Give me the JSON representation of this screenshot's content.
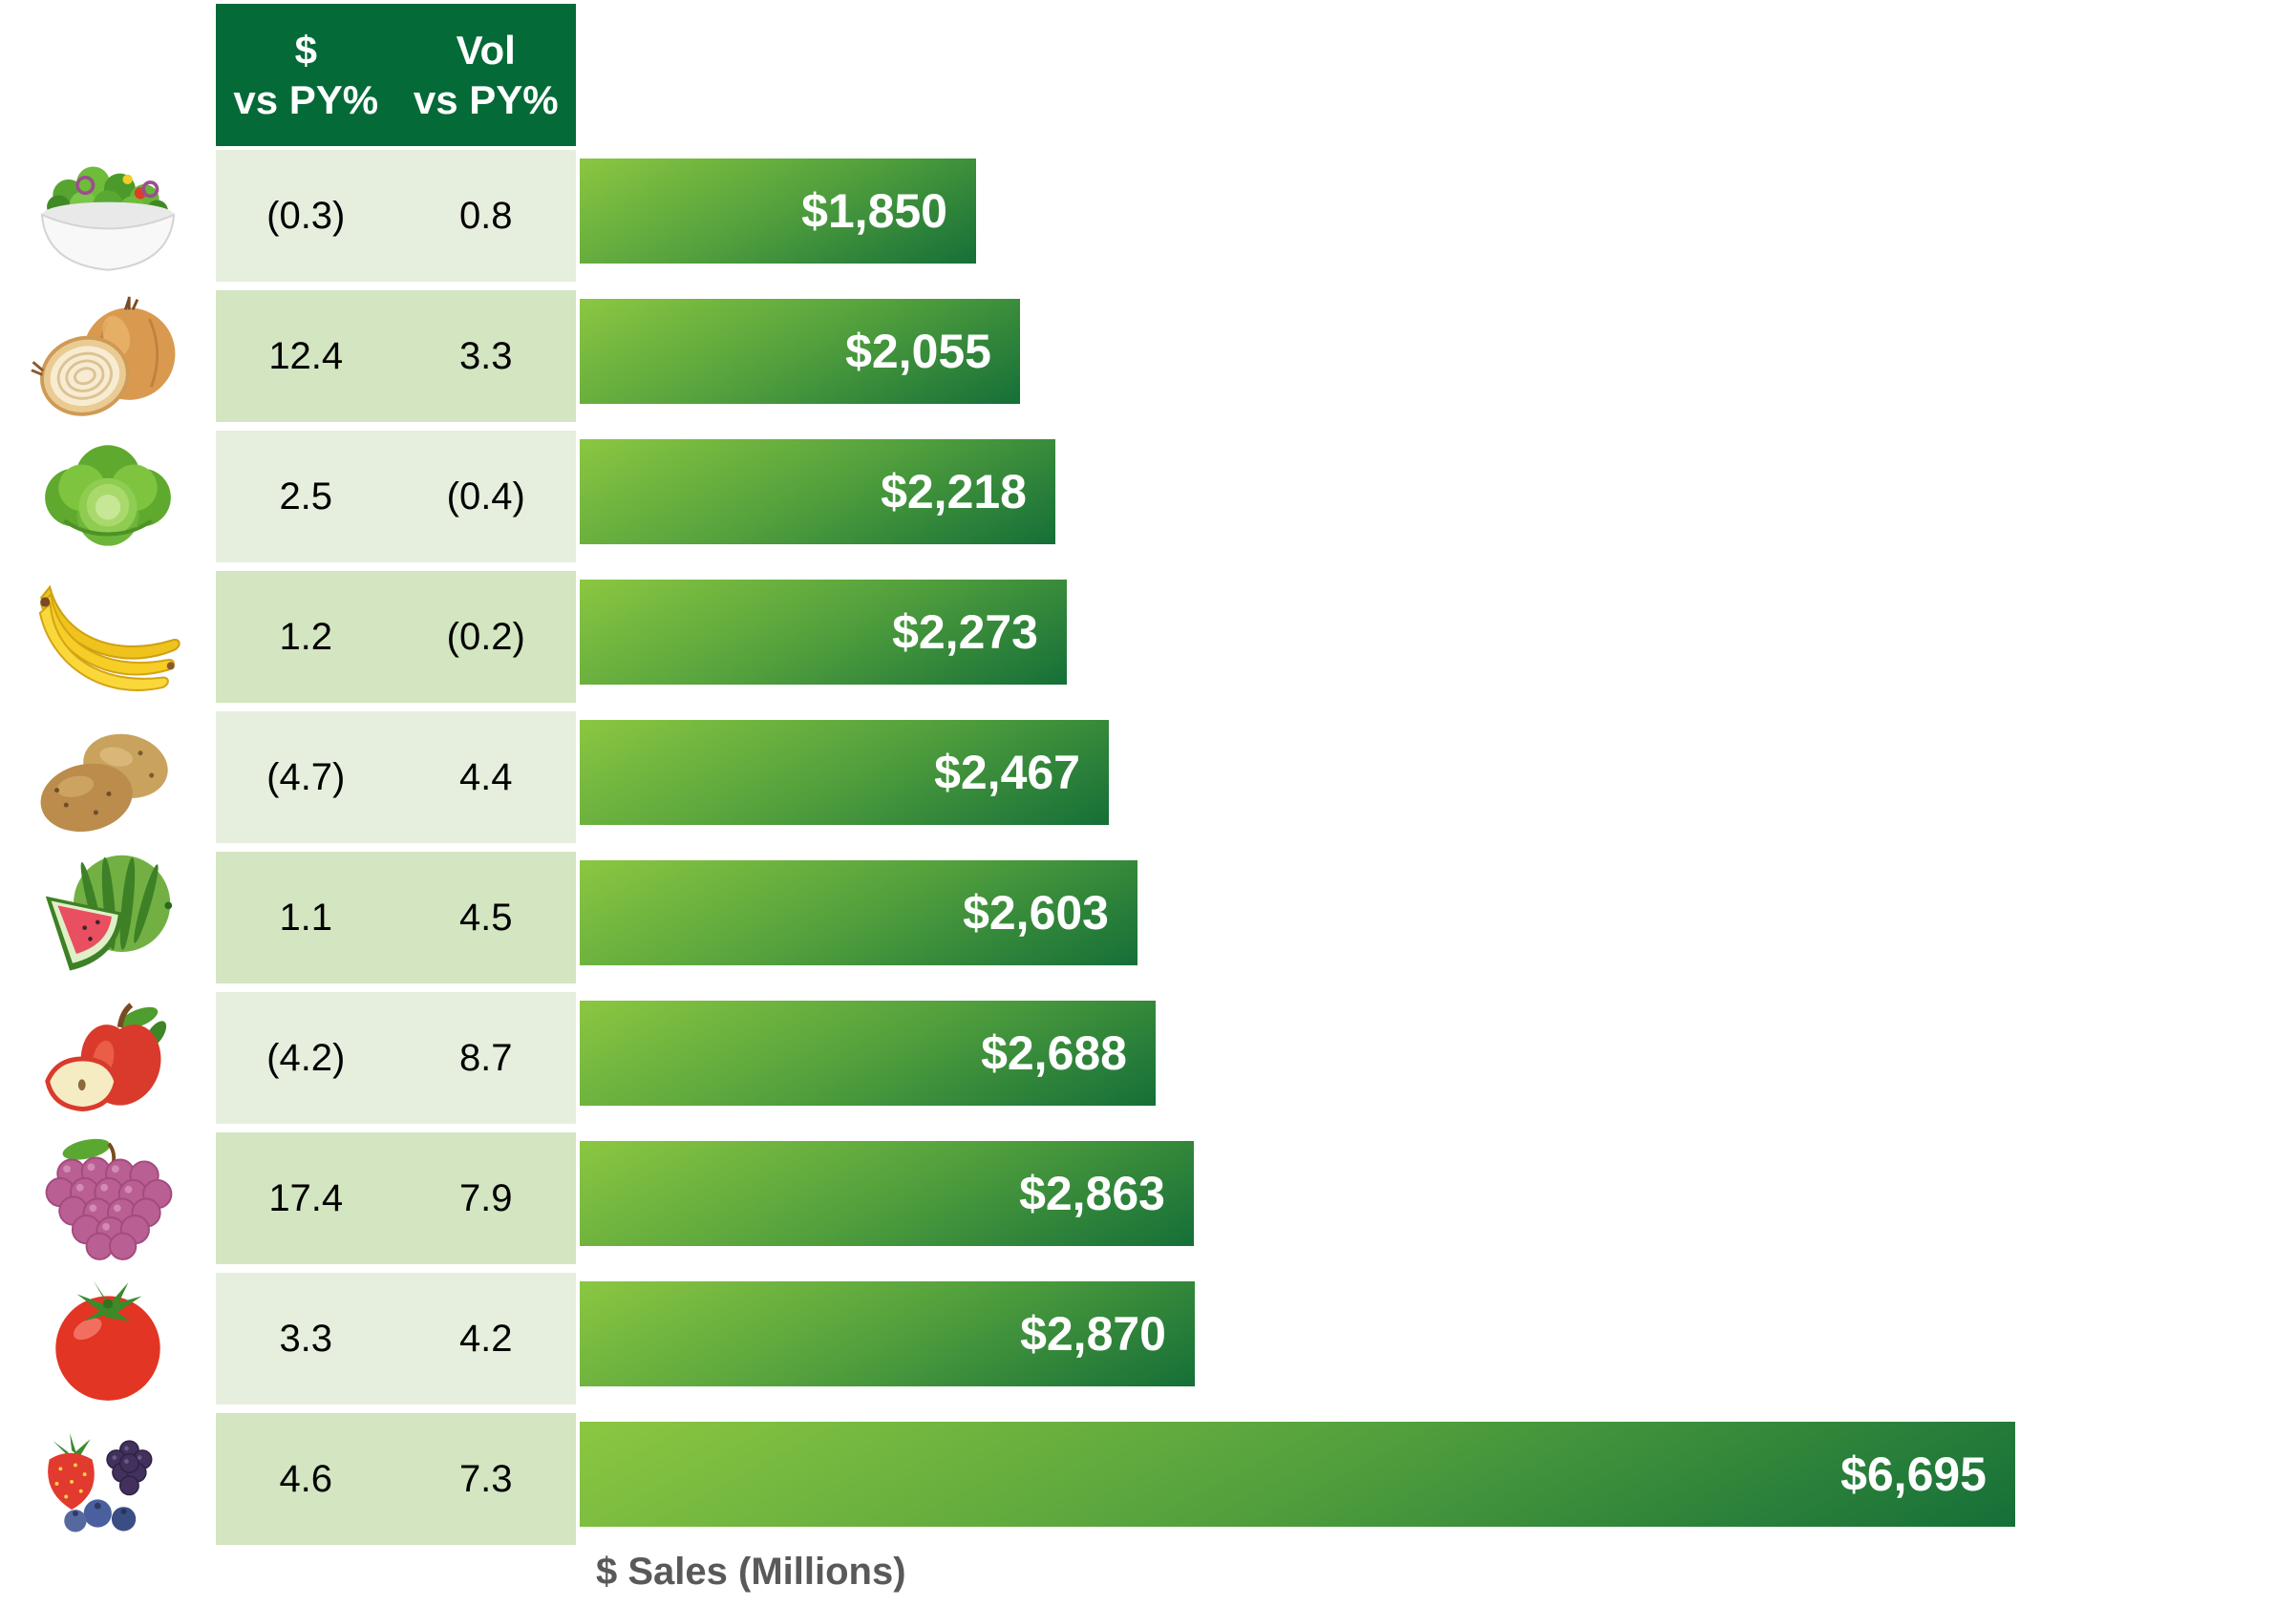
{
  "header": {
    "col1_line1": "$",
    "col1_line2": "vs PY%",
    "col2_line1": "Vol",
    "col2_line2": "vs PY%"
  },
  "axis_label": "$ Sales (Millions)",
  "colors": {
    "header_green": "#046a38",
    "row_light": "#e6efdd",
    "row_dark": "#d3e5c1",
    "bar_gradient_top": "#8bc741",
    "bar_gradient_mid": "#55a23d",
    "bar_gradient_bottom": "#156f38",
    "bar_label_color": "#ffffff",
    "value_text_color": "#000000",
    "axis_label_color": "#595959"
  },
  "rows": [
    {
      "icon": "salad-icon",
      "item": "salad",
      "dollar_vs_py": "(0.3)",
      "vol_vs_py": "0.8",
      "sales_label": "$1,850",
      "sales_value": 1850
    },
    {
      "icon": "onion-icon",
      "item": "onions",
      "dollar_vs_py": "12.4",
      "vol_vs_py": "3.3",
      "sales_label": "$2,055",
      "sales_value": 2055
    },
    {
      "icon": "lettuce-icon",
      "item": "lettuce",
      "dollar_vs_py": "2.5",
      "vol_vs_py": "(0.4)",
      "sales_label": "$2,218",
      "sales_value": 2218
    },
    {
      "icon": "bananas-icon",
      "item": "bananas",
      "dollar_vs_py": "1.2",
      "vol_vs_py": "(0.2)",
      "sales_label": "$2,273",
      "sales_value": 2273
    },
    {
      "icon": "potatoes-icon",
      "item": "potatoes",
      "dollar_vs_py": "(4.7)",
      "vol_vs_py": "4.4",
      "sales_label": "$2,467",
      "sales_value": 2467
    },
    {
      "icon": "watermelon-icon",
      "item": "watermelon",
      "dollar_vs_py": "1.1",
      "vol_vs_py": "4.5",
      "sales_label": "$2,603",
      "sales_value": 2603
    },
    {
      "icon": "apple-icon",
      "item": "apples",
      "dollar_vs_py": "(4.2)",
      "vol_vs_py": "8.7",
      "sales_label": "$2,688",
      "sales_value": 2688
    },
    {
      "icon": "grapes-icon",
      "item": "grapes",
      "dollar_vs_py": "17.4",
      "vol_vs_py": "7.9",
      "sales_label": "$2,863",
      "sales_value": 2863
    },
    {
      "icon": "tomato-icon",
      "item": "tomatoes",
      "dollar_vs_py": "3.3",
      "vol_vs_py": "4.2",
      "sales_label": "$2,870",
      "sales_value": 2870
    },
    {
      "icon": "berries-icon",
      "item": "berries",
      "dollar_vs_py": "4.6",
      "vol_vs_py": "7.3",
      "sales_label": "$6,695",
      "sales_value": 6695
    }
  ],
  "chart_data": {
    "type": "bar",
    "orientation": "horizontal",
    "title": "",
    "xlabel": "$ Sales (Millions)",
    "ylabel": "",
    "xlim": [
      0,
      6695
    ],
    "grid": false,
    "legend": false,
    "categories": [
      "salad",
      "onions",
      "lettuce",
      "bananas",
      "potatoes",
      "watermelon",
      "apples",
      "grapes",
      "tomatoes",
      "berries"
    ],
    "series": [
      {
        "name": "$ Sales (Millions)",
        "values": [
          1850,
          2055,
          2218,
          2273,
          2467,
          2603,
          2688,
          2863,
          2870,
          6695
        ]
      },
      {
        "name": "$ vs PY%",
        "values": [
          -0.3,
          12.4,
          2.5,
          1.2,
          -4.7,
          1.1,
          -4.2,
          17.4,
          3.3,
          4.6
        ]
      },
      {
        "name": "Vol vs PY%",
        "values": [
          0.8,
          3.3,
          -0.4,
          -0.2,
          4.4,
          4.5,
          8.7,
          7.9,
          4.2,
          7.3
        ]
      }
    ],
    "value_labels": [
      "$1,850",
      "$2,055",
      "$2,218",
      "$2,273",
      "$2,467",
      "$2,603",
      "$2,688",
      "$2,863",
      "$2,870",
      "$6,695"
    ]
  }
}
